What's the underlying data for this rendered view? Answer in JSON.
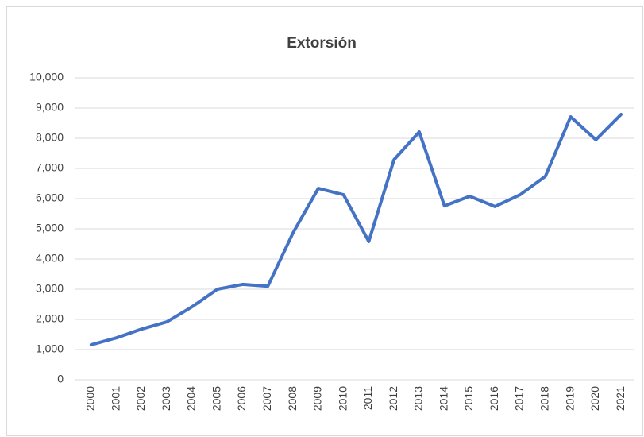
{
  "chart_data": {
    "type": "line",
    "title": "Extorsión",
    "categories": [
      "2000",
      "2001",
      "2002",
      "2003",
      "2004",
      "2005",
      "2006",
      "2007",
      "2008",
      "2009",
      "2010",
      "2011",
      "2012",
      "2013",
      "2014",
      "2015",
      "2016",
      "2017",
      "2018",
      "2019",
      "2020",
      "2021"
    ],
    "series": [
      {
        "name": "Extorsión",
        "color": "#4472c4",
        "values": [
          1160,
          1390,
          1680,
          1920,
          2420,
          3000,
          3160,
          3100,
          4870,
          6340,
          6130,
          4580,
          7290,
          8210,
          5760,
          6080,
          5740,
          6130,
          6740,
          8710,
          7950,
          8790
        ]
      }
    ],
    "ylim": [
      0,
      10000
    ],
    "yticks": [
      0,
      {
        "value": 1000,
        "label": "1,000"
      },
      {
        "value": 2000,
        "label": "2,000"
      },
      {
        "value": 3000,
        "label": "3,000"
      },
      {
        "value": 4000,
        "label": "4,000"
      },
      {
        "value": 5000,
        "label": "5,000"
      },
      {
        "value": 6000,
        "label": "6,000"
      },
      {
        "value": 7000,
        "label": "7,000"
      },
      {
        "value": 8000,
        "label": "8,000"
      },
      {
        "value": 9000,
        "label": "9,000"
      },
      {
        "value": 10000,
        "label": "10,000"
      }
    ],
    "grid": true
  }
}
